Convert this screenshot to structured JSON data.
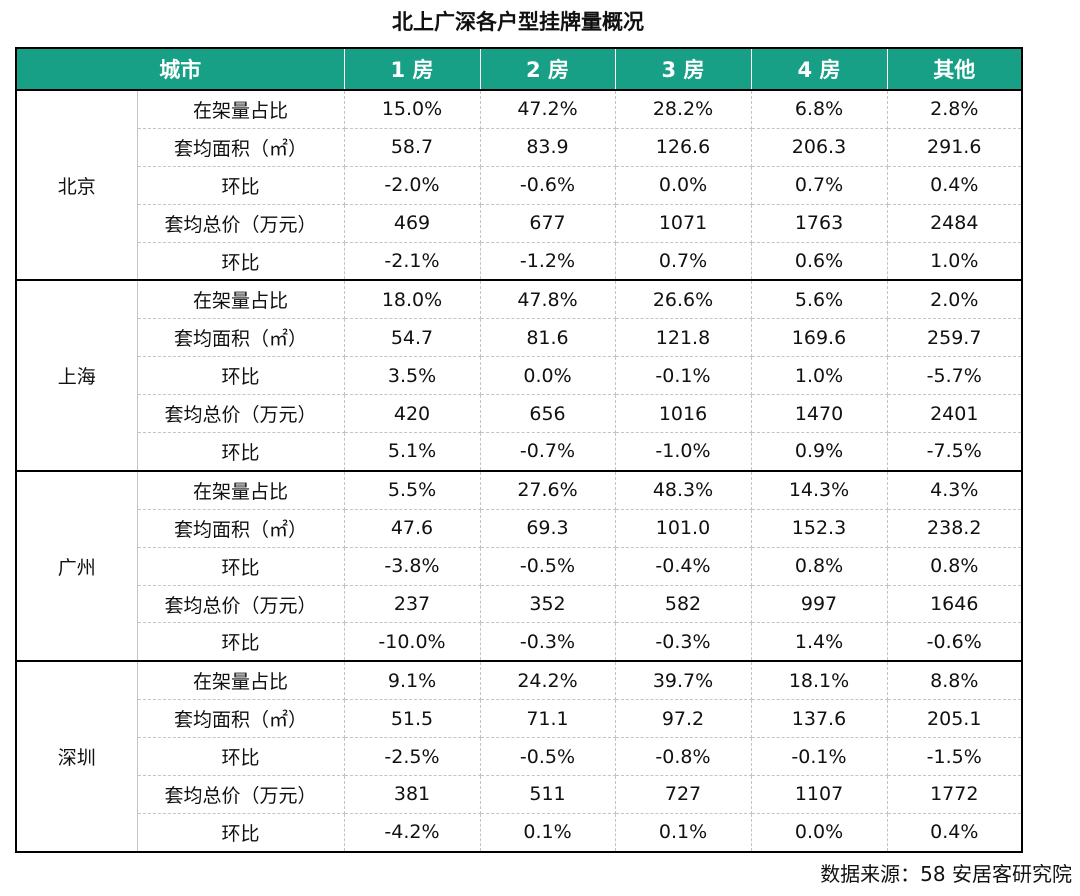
{
  "title": "北上广深各户型挂牌量概况",
  "header": [
    "城市",
    "1 房",
    "2 房",
    "3 房",
    "4 房",
    "其他"
  ],
  "cities": [
    {
      "name": "北京",
      "rows": [
        {
          "metric": "在架量占比",
          "values": [
            "15.0%",
            "47.2%",
            "28.2%",
            "6.8%",
            "2.8%"
          ]
        },
        {
          "metric": "套均面积（㎡）",
          "values": [
            "58.7",
            "83.9",
            "126.6",
            "206.3",
            "291.6"
          ]
        },
        {
          "metric": "环比",
          "values": [
            "-2.0%",
            "-0.6%",
            "0.0%",
            "0.7%",
            "0.4%"
          ]
        },
        {
          "metric": "套均总价（万元）",
          "values": [
            "469",
            "677",
            "1071",
            "1763",
            "2484"
          ]
        },
        {
          "metric": "环比",
          "values": [
            "-2.1%",
            "-1.2%",
            "0.7%",
            "0.6%",
            "1.0%"
          ]
        }
      ]
    },
    {
      "name": "上海",
      "rows": [
        {
          "metric": "在架量占比",
          "values": [
            "18.0%",
            "47.8%",
            "26.6%",
            "5.6%",
            "2.0%"
          ]
        },
        {
          "metric": "套均面积（㎡）",
          "values": [
            "54.7",
            "81.6",
            "121.8",
            "169.6",
            "259.7"
          ]
        },
        {
          "metric": "环比",
          "values": [
            "3.5%",
            "0.0%",
            "-0.1%",
            "1.0%",
            "-5.7%"
          ]
        },
        {
          "metric": "套均总价（万元）",
          "values": [
            "420",
            "656",
            "1016",
            "1470",
            "2401"
          ]
        },
        {
          "metric": "环比",
          "values": [
            "5.1%",
            "-0.7%",
            "-1.0%",
            "0.9%",
            "-7.5%"
          ]
        }
      ]
    },
    {
      "name": "广州",
      "rows": [
        {
          "metric": "在架量占比",
          "values": [
            "5.5%",
            "27.6%",
            "48.3%",
            "14.3%",
            "4.3%"
          ]
        },
        {
          "metric": "套均面积（㎡）",
          "values": [
            "47.6",
            "69.3",
            "101.0",
            "152.3",
            "238.2"
          ]
        },
        {
          "metric": "环比",
          "values": [
            "-3.8%",
            "-0.5%",
            "-0.4%",
            "0.8%",
            "0.8%"
          ]
        },
        {
          "metric": "套均总价（万元）",
          "values": [
            "237",
            "352",
            "582",
            "997",
            "1646"
          ]
        },
        {
          "metric": "环比",
          "values": [
            "-10.0%",
            "-0.3%",
            "-0.3%",
            "1.4%",
            "-0.6%"
          ]
        }
      ]
    },
    {
      "name": "深圳",
      "rows": [
        {
          "metric": "在架量占比",
          "values": [
            "9.1%",
            "24.2%",
            "39.7%",
            "18.1%",
            "8.8%"
          ]
        },
        {
          "metric": "套均面积（㎡）",
          "values": [
            "51.5",
            "71.1",
            "97.2",
            "137.6",
            "205.1"
          ]
        },
        {
          "metric": "环比",
          "values": [
            "-2.5%",
            "-0.5%",
            "-0.8%",
            "-0.1%",
            "-1.5%"
          ]
        },
        {
          "metric": "套均总价（万元）",
          "values": [
            "381",
            "511",
            "727",
            "1107",
            "1772"
          ]
        },
        {
          "metric": "环比",
          "values": [
            "-4.2%",
            "0.1%",
            "0.1%",
            "0.0%",
            "0.4%"
          ]
        }
      ]
    }
  ],
  "source": "数据来源：58 安居客研究院"
}
